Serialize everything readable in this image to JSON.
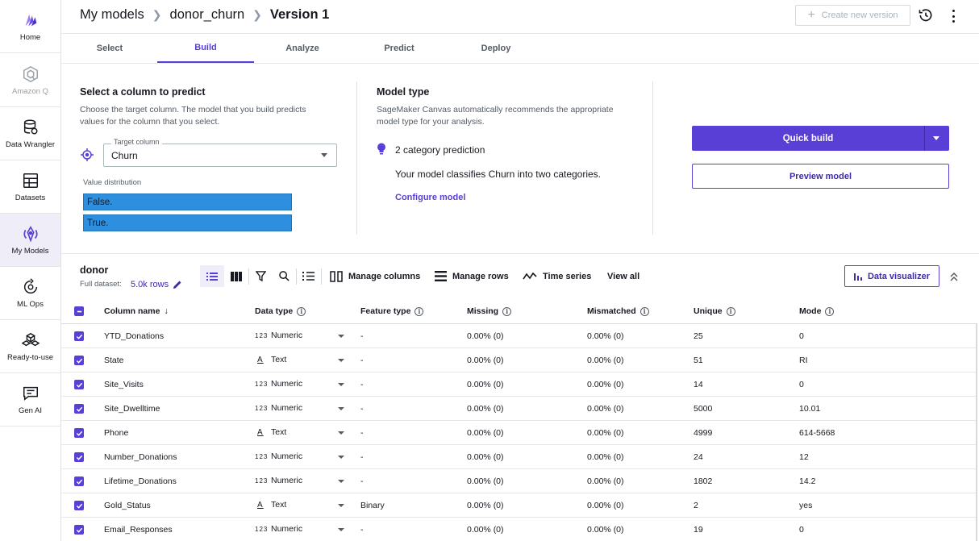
{
  "sidebar": {
    "items": [
      {
        "label": "Home",
        "icon": "canvas-logo-icon",
        "state": "normal"
      },
      {
        "label": "Amazon Q",
        "icon": "amazon-q-icon",
        "state": "disabled"
      },
      {
        "label": "Data Wrangler",
        "icon": "database-icon",
        "state": "normal"
      },
      {
        "label": "Datasets",
        "icon": "table-icon",
        "state": "normal"
      },
      {
        "label": "My Models",
        "icon": "models-icon",
        "state": "active"
      },
      {
        "label": "ML Ops",
        "icon": "ml-ops-icon",
        "state": "normal"
      },
      {
        "label": "Ready-to-use",
        "icon": "boxes-icon",
        "state": "normal"
      },
      {
        "label": "Gen AI",
        "icon": "chat-icon",
        "state": "normal"
      }
    ]
  },
  "header": {
    "breadcrumb": [
      "My models",
      "donor_churn",
      "Version 1"
    ],
    "create_version_label": "Create new version"
  },
  "tabs": [
    {
      "label": "Select",
      "active": false
    },
    {
      "label": "Build",
      "active": true
    },
    {
      "label": "Analyze",
      "active": false
    },
    {
      "label": "Predict",
      "active": false
    },
    {
      "label": "Deploy",
      "active": false
    }
  ],
  "predict": {
    "title": "Select a column to predict",
    "desc_line1": "Choose the target column. The model that you build predicts",
    "desc_line2": "values for the column that you select.",
    "target_legend": "Target column",
    "target_value": "Churn",
    "value_distribution_label": "Value distribution",
    "distribution": [
      {
        "label": "False.",
        "fraction": 1.0
      },
      {
        "label": "True.",
        "fraction": 1.0
      }
    ]
  },
  "model_type": {
    "title": "Model type",
    "desc_line1": "SageMaker Canvas automatically recommends the appropriate",
    "desc_line2": "model type for your analysis.",
    "prediction_type": "2 category prediction",
    "explanation": "Your model classifies Churn into two categories.",
    "configure_label": "Configure model"
  },
  "actions": {
    "quick_build_label": "Quick build",
    "preview_label": "Preview model"
  },
  "dataset": {
    "name": "donor",
    "full_dataset_label": "Full dataset:",
    "rows_label": "5.0k rows",
    "manage_columns_label": "Manage columns",
    "manage_rows_label": "Manage rows",
    "time_series_label": "Time series",
    "view_all_label": "View all",
    "data_visualizer_label": "Data visualizer"
  },
  "table": {
    "headers": {
      "column_name": "Column name",
      "data_type": "Data type",
      "feature_type": "Feature type",
      "missing": "Missing",
      "mismatched": "Mismatched",
      "unique": "Unique",
      "mode": "Mode"
    },
    "rows": [
      {
        "name": "YTD_Donations",
        "type_icon": "123",
        "type": "Numeric",
        "feature": "-",
        "missing": "0.00% (0)",
        "mismatched": "0.00% (0)",
        "unique": "25",
        "mode": "0"
      },
      {
        "name": "State",
        "type_icon": "A",
        "type": "Text",
        "feature": "-",
        "missing": "0.00% (0)",
        "mismatched": "0.00% (0)",
        "unique": "51",
        "mode": "RI"
      },
      {
        "name": "Site_Visits",
        "type_icon": "123",
        "type": "Numeric",
        "feature": "-",
        "missing": "0.00% (0)",
        "mismatched": "0.00% (0)",
        "unique": "14",
        "mode": "0"
      },
      {
        "name": "Site_Dwelltime",
        "type_icon": "123",
        "type": "Numeric",
        "feature": "-",
        "missing": "0.00% (0)",
        "mismatched": "0.00% (0)",
        "unique": "5000",
        "mode": "10.01"
      },
      {
        "name": "Phone",
        "type_icon": "A",
        "type": "Text",
        "feature": "-",
        "missing": "0.00% (0)",
        "mismatched": "0.00% (0)",
        "unique": "4999",
        "mode": "614-5668"
      },
      {
        "name": "Number_Donations",
        "type_icon": "123",
        "type": "Numeric",
        "feature": "-",
        "missing": "0.00% (0)",
        "mismatched": "0.00% (0)",
        "unique": "24",
        "mode": "12"
      },
      {
        "name": "Lifetime_Donations",
        "type_icon": "123",
        "type": "Numeric",
        "feature": "-",
        "missing": "0.00% (0)",
        "mismatched": "0.00% (0)",
        "unique": "1802",
        "mode": "14.2"
      },
      {
        "name": "Gold_Status",
        "type_icon": "A",
        "type": "Text",
        "feature": "Binary",
        "missing": "0.00% (0)",
        "mismatched": "0.00% (0)",
        "unique": "2",
        "mode": "yes"
      },
      {
        "name": "Email_Responses",
        "type_icon": "123",
        "type": "Numeric",
        "feature": "-",
        "missing": "0.00% (0)",
        "mismatched": "0.00% (0)",
        "unique": "19",
        "mode": "0"
      }
    ]
  },
  "colors": {
    "accent": "#5a3fd6",
    "distribution_bar": "#2d8fde"
  }
}
